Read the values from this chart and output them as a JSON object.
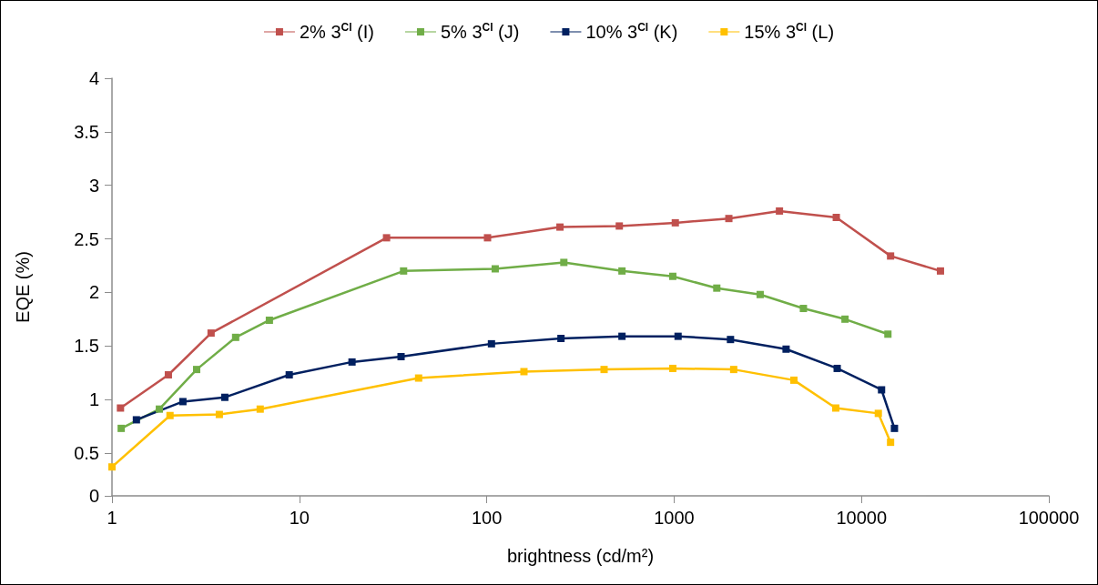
{
  "chart_data": {
    "type": "line",
    "xlabel": "brightness (cd/m²)",
    "ylabel": "EQE (%)",
    "log": "x",
    "xlim": [
      1,
      100000
    ],
    "xticks": [
      1,
      10,
      100,
      1000,
      10000,
      100000
    ],
    "ylim": [
      0.1,
      4
    ],
    "yticks": [
      {
        "value": 0.1,
        "label": "0"
      },
      0.5,
      1,
      1.5,
      2,
      2.5,
      3,
      3.5,
      4
    ],
    "grid": false,
    "legend": "top",
    "marker": "square",
    "line_style": "solid",
    "series": [
      {
        "name": "2% 3$^{Cl}$ (I)",
        "color": "#c0504d",
        "x": [
          1.11,
          2.0,
          3.38,
          29.2,
          101,
          246,
          510,
          1015,
          1960,
          3650,
          7340,
          14300,
          26400
        ],
        "values": [
          0.92,
          1.23,
          1.62,
          2.51,
          2.51,
          2.61,
          2.62,
          2.65,
          2.69,
          2.76,
          2.7,
          2.34,
          2.2
        ]
      },
      {
        "name": "5% 3$^{Cl}$ (J)",
        "color": "#70ad47",
        "x": [
          1.12,
          1.79,
          2.83,
          4.57,
          6.92,
          36.0,
          111,
          258,
          527,
          984,
          1690,
          2880,
          4900,
          8170,
          13840
        ],
        "values": [
          0.73,
          0.91,
          1.28,
          1.58,
          1.74,
          2.2,
          2.22,
          2.28,
          2.2,
          2.15,
          2.04,
          1.98,
          1.85,
          1.75,
          1.61
        ]
      },
      {
        "name": "10% 3$^{Cl}$ (K)",
        "color": "#002060",
        "x": [
          1.35,
          2.39,
          4.0,
          8.83,
          19.1,
          34.9,
          106,
          249,
          527,
          1050,
          2000,
          3960,
          7420,
          12800,
          15000
        ],
        "values": [
          0.81,
          0.98,
          1.02,
          1.23,
          1.35,
          1.4,
          1.52,
          1.57,
          1.59,
          1.59,
          1.56,
          1.47,
          1.29,
          1.09,
          0.73
        ]
      },
      {
        "name": "15% 3$^{Cl}$ (L)",
        "color": "#ffc000",
        "x": [
          1,
          2.04,
          3.74,
          6.18,
          43.3,
          158,
          423,
          984,
          2080,
          4360,
          7290,
          12300,
          14300
        ],
        "values": [
          0.37,
          0.85,
          0.86,
          0.91,
          1.2,
          1.26,
          1.28,
          1.29,
          1.28,
          1.18,
          0.92,
          0.87,
          0.6
        ]
      }
    ]
  }
}
